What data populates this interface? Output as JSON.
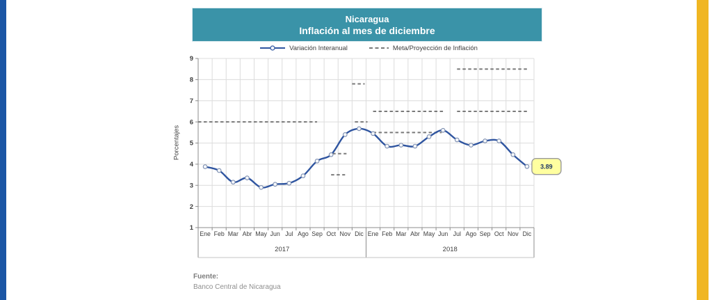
{
  "page": {
    "left_bar_color": "#1b56a5",
    "right_bar_color": "#f0b622",
    "background": "#ffffff"
  },
  "header": {
    "title_line1": "Nicaragua",
    "title_line2": "Inflación al mes de diciembre",
    "bg_color": "#3a93a8",
    "text_color": "#ffffff"
  },
  "footer": {
    "label": "Fuente:",
    "source": "Banco Central de Nicaragua"
  },
  "chart_data": {
    "type": "line",
    "title": "Nicaragua - Inflación al mes de diciembre",
    "ylabel": "Porcentajes",
    "ylim": [
      1,
      9
    ],
    "yticks": [
      1,
      2,
      3,
      4,
      5,
      6,
      7,
      8,
      9
    ],
    "grid": "on",
    "legend_position": "top",
    "months": [
      "Ene",
      "Feb",
      "Mar",
      "Abr",
      "May",
      "Jun",
      "Jul",
      "Ago",
      "Sep",
      "Oct",
      "Nov",
      "Dic",
      "Ene",
      "Feb",
      "Mar",
      "Abr",
      "May",
      "Jun",
      "Jul",
      "Ago",
      "Sep",
      "Oct",
      "Nov",
      "Dic"
    ],
    "year_groups": [
      {
        "label": "2017",
        "span": 12
      },
      {
        "label": "2018",
        "span": 12
      }
    ],
    "series": [
      {
        "name": "Variación Interanual",
        "type": "line-markers",
        "color": "#2f55a0",
        "marker_fill": "#f4f7fb",
        "marker_stroke": "#7d8eb0",
        "values": [
          3.88,
          3.7,
          3.15,
          3.35,
          2.9,
          3.05,
          3.1,
          3.45,
          4.15,
          4.45,
          5.4,
          5.68,
          5.45,
          4.85,
          4.9,
          4.85,
          5.3,
          5.6,
          5.15,
          4.9,
          5.1,
          5.1,
          4.45,
          3.89
        ]
      },
      {
        "name": "Meta/Proyección de Inflación",
        "type": "dashed-segments",
        "color": "#7a7a7a",
        "segments": [
          {
            "value": 6.0,
            "start_month_index": -0.5,
            "end_month_index": 8.0
          },
          {
            "value": 4.5,
            "start_month_index": 9.1,
            "end_month_index": 10.1
          },
          {
            "value": 3.5,
            "start_month_index": 9.0,
            "end_month_index": 10.0
          },
          {
            "value": 7.8,
            "start_month_index": 10.5,
            "end_month_index": 11.4
          },
          {
            "value": 6.0,
            "start_month_index": 10.7,
            "end_month_index": 11.6
          },
          {
            "value": 6.5,
            "start_month_index": 12.0,
            "end_month_index": 17.0
          },
          {
            "value": 5.5,
            "start_month_index": 12.0,
            "end_month_index": 16.9
          },
          {
            "value": 6.5,
            "start_month_index": 18.0,
            "end_month_index": 23.1
          },
          {
            "value": 8.5,
            "start_month_index": 18.0,
            "end_month_index": 23.1
          }
        ]
      }
    ],
    "end_label": {
      "text": "3.89",
      "bg": "#ffffa0",
      "border": "#9a9a9a",
      "text_color": "#1f3864"
    },
    "colors": {
      "grid": "#dcdcdc",
      "axis": "#8c8c8c",
      "tick_text": "#404040"
    }
  }
}
